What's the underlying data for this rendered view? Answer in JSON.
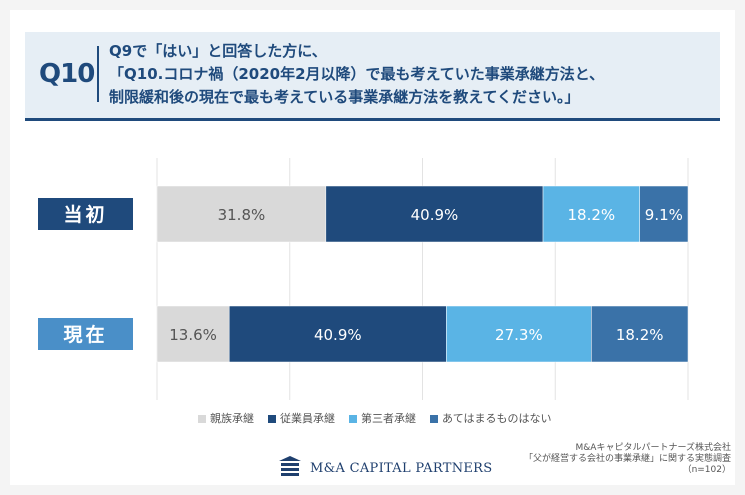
{
  "question": {
    "number": "Q10",
    "lines": [
      "Q9で「はい」と回答した方に、",
      "「Q10.コロナ禍（2020年2月以降）で最も考えていた事業承継方法と、",
      "制限緩和後の現在で最も考えている事業承継方法を教えてください。」"
    ]
  },
  "chart_data": {
    "type": "bar",
    "orientation": "horizontal",
    "stacked": true,
    "percent_stacked": true,
    "categories": [
      "当初",
      "現在"
    ],
    "series": [
      {
        "name": "親族承継",
        "values": [
          31.8,
          13.6
        ],
        "color": "#d9d9d9",
        "label_color": "#555555"
      },
      {
        "name": "従業員承継",
        "values": [
          40.9,
          40.9
        ],
        "color": "#1f4a7c",
        "label_color": "#ffffff"
      },
      {
        "name": "第三者承継",
        "values": [
          18.2,
          27.3
        ],
        "color": "#5ab4e5",
        "label_color": "#ffffff"
      },
      {
        "name": "あてはまるものはない",
        "values": [
          9.1,
          18.2
        ],
        "color": "#3a72a8",
        "label_color": "#ffffff"
      }
    ],
    "category_colors": [
      "#1f4a7c",
      "#4a8fc8"
    ],
    "value_suffix": "%",
    "xlim": [
      0,
      100
    ],
    "legend_position": "bottom"
  },
  "footer": {
    "logo_text": "M&A CAPITAL PARTNERS",
    "source_lines": [
      "M&Aキャピタルパートナーズ株式会社",
      "「父が経営する会社の事業承継」に関する実態調査",
      "（n=102）"
    ]
  }
}
